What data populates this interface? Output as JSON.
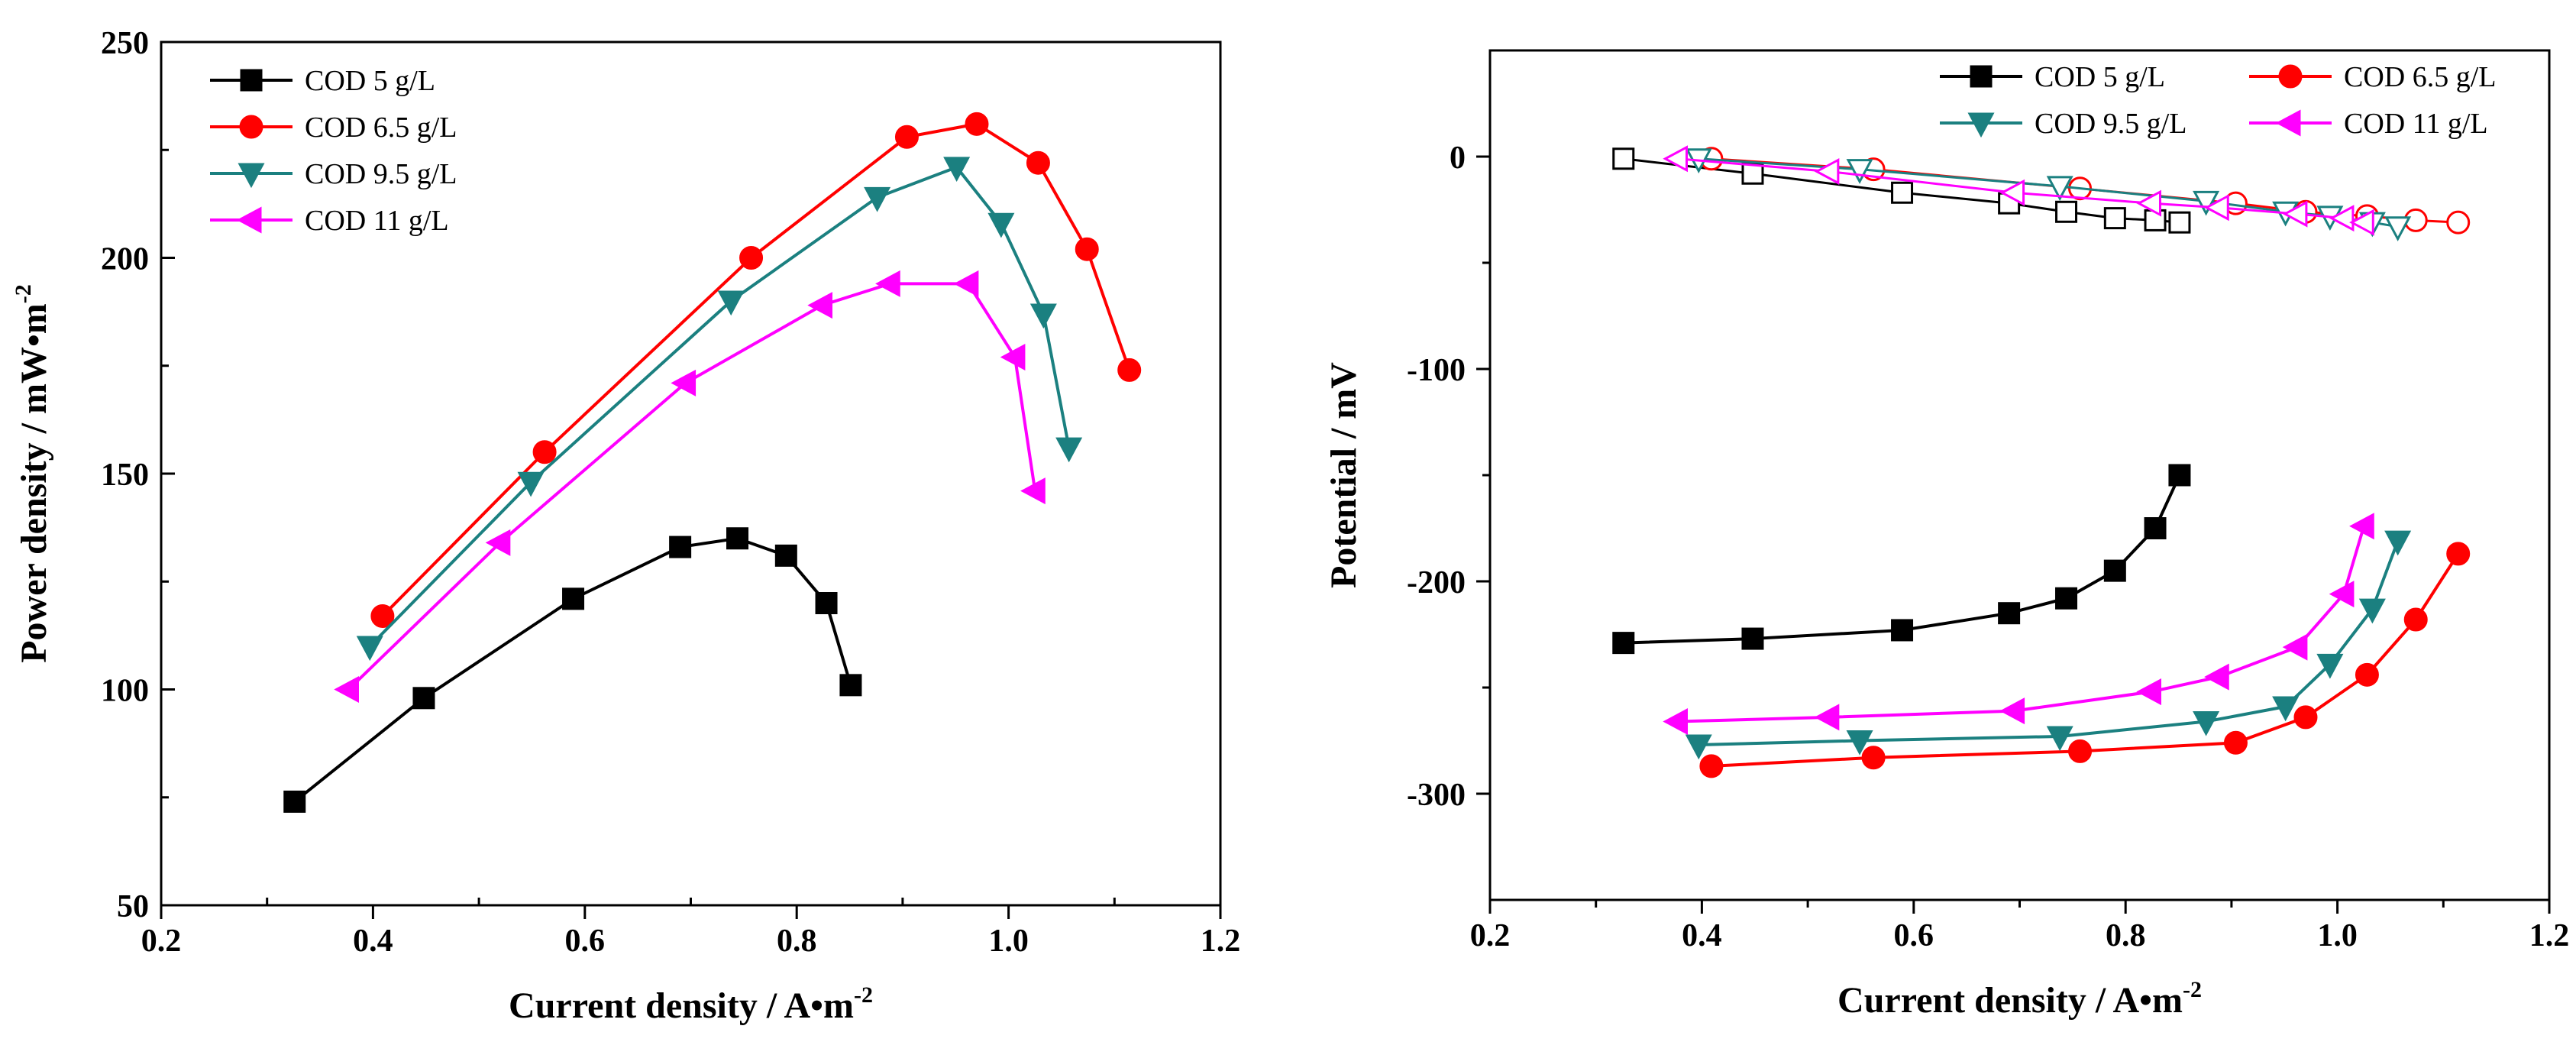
{
  "chart_data": [
    {
      "type": "line",
      "id": "power",
      "xlabel": "Current density / A•m",
      "xlabel_sup": "-2",
      "ylabel": "Power density / mW•m",
      "ylabel_sup": "-2",
      "xlim": [
        0.2,
        1.2
      ],
      "ylim": [
        50,
        250
      ],
      "xticks": [
        0.2,
        0.4,
        0.6,
        0.8,
        1.0,
        1.2
      ],
      "xtick_labels": [
        "0.2",
        "0.4",
        "0.6",
        "0.8",
        "1.0",
        "1.2"
      ],
      "yticks": [
        50,
        100,
        150,
        200,
        250
      ],
      "ytick_labels": [
        "50",
        "100",
        "150",
        "200",
        "250"
      ],
      "legend_position": "top-left",
      "series": [
        {
          "name": "COD  5 g/L",
          "color": "#000000",
          "marker": "square",
          "x": [
            0.326,
            0.448,
            0.589,
            0.69,
            0.744,
            0.79,
            0.828,
            0.851
          ],
          "y": [
            74,
            98,
            121,
            133,
            135,
            131,
            120,
            101
          ]
        },
        {
          "name": "COD  6.5 g/L",
          "color": "#ff0000",
          "marker": "circle",
          "x": [
            0.409,
            0.562,
            0.757,
            0.904,
            0.97,
            1.028,
            1.074,
            1.114
          ],
          "y": [
            117,
            155,
            200,
            228,
            231,
            222,
            202,
            174
          ]
        },
        {
          "name": "COD  9.5 g/L",
          "color": "#1b8080",
          "marker": "triangle-down",
          "x": [
            0.397,
            0.549,
            0.738,
            0.876,
            0.951,
            0.993,
            1.033,
            1.057
          ],
          "y": [
            110,
            148,
            190,
            214,
            221,
            208,
            187,
            156
          ]
        },
        {
          "name": "COD  11 g/L",
          "color": "#ff00ff",
          "marker": "triangle-left",
          "x": [
            0.377,
            0.52,
            0.695,
            0.824,
            0.888,
            0.962,
            1.006,
            1.025
          ],
          "y": [
            100,
            134,
            171,
            189,
            194,
            194,
            177,
            146
          ]
        }
      ]
    },
    {
      "type": "line",
      "id": "potential",
      "xlabel": "Current density / A•m",
      "xlabel_sup": "-2",
      "ylabel": "Potential / mV",
      "xlim": [
        0.2,
        1.2
      ],
      "ylim": [
        -350,
        50
      ],
      "xticks": [
        0.2,
        0.4,
        0.6,
        0.8,
        1.0,
        1.2
      ],
      "xtick_labels": [
        "0.2",
        "0.4",
        "0.6",
        "0.8",
        "1.0",
        "1.2"
      ],
      "yticks": [
        0,
        -100,
        -200,
        -300
      ],
      "ytick_labels": [
        "0",
        "-100",
        "-200",
        "-300"
      ],
      "legend_position": "top-right",
      "series": [
        {
          "name": "COD  5 g/L",
          "color": "#000000",
          "marker": "square",
          "anode_x": [
            0.326,
            0.448,
            0.589,
            0.69,
            0.744,
            0.79,
            0.828,
            0.851
          ],
          "anode_y": [
            -229,
            -227,
            -223,
            -215,
            -208,
            -195,
            -175,
            -150
          ],
          "cathode_x": [
            0.326,
            0.448,
            0.589,
            0.69,
            0.744,
            0.79,
            0.828,
            0.851
          ],
          "cathode_y": [
            -1,
            -8,
            -17,
            -22,
            -26,
            -29,
            -30,
            -31
          ]
        },
        {
          "name": "COD  6.5 g/L",
          "color": "#ff0000",
          "marker": "circle",
          "anode_x": [
            0.409,
            0.562,
            0.757,
            0.904,
            0.97,
            1.028,
            1.074,
            1.114
          ],
          "anode_y": [
            -287,
            -283,
            -280,
            -276,
            -264,
            -244,
            -218,
            -187
          ],
          "cathode_x": [
            0.409,
            0.562,
            0.757,
            0.904,
            0.97,
            1.028,
            1.074,
            1.114
          ],
          "cathode_y": [
            -1,
            -6,
            -15,
            -22,
            -26,
            -28,
            -30,
            -31
          ]
        },
        {
          "name": "COD  9.5 g/L",
          "color": "#1b8080",
          "marker": "triangle-down",
          "anode_x": [
            0.397,
            0.549,
            0.738,
            0.876,
            0.951,
            0.993,
            1.033,
            1.057
          ],
          "anode_y": [
            -277,
            -275,
            -273,
            -266,
            -259,
            -239,
            -213,
            -181
          ],
          "cathode_x": [
            0.397,
            0.549,
            0.738,
            0.876,
            0.951,
            0.993,
            1.033,
            1.057
          ],
          "cathode_y": [
            -1,
            -6,
            -14,
            -21,
            -26,
            -28,
            -31,
            -33
          ]
        },
        {
          "name": "COD  11 g/L",
          "color": "#ff00ff",
          "marker": "triangle-left",
          "anode_x": [
            0.377,
            0.52,
            0.695,
            0.824,
            0.888,
            0.962,
            1.006,
            1.025
          ],
          "anode_y": [
            -266,
            -264,
            -261,
            -252,
            -245,
            -231,
            -206,
            -174
          ],
          "cathode_x": [
            0.377,
            0.52,
            0.695,
            0.824,
            0.888,
            0.962,
            1.006,
            1.025
          ],
          "cathode_y": [
            -1,
            -7,
            -17,
            -22,
            -24,
            -27,
            -29,
            -31
          ]
        }
      ]
    }
  ]
}
